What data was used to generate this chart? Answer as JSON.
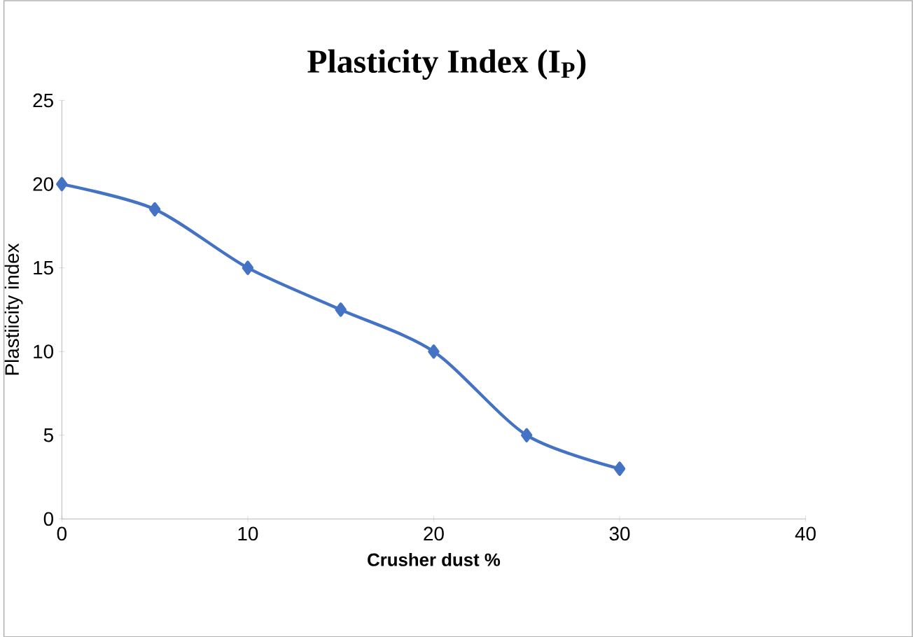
{
  "chart_data": {
    "type": "line",
    "title": "Plasticity Index (I$_{P}$)",
    "xlabel": "Crusher dust %",
    "ylabel": "Plastiicity index",
    "x": [
      0,
      5,
      10,
      15,
      20,
      25,
      30
    ],
    "series": [
      {
        "color": "#4472c4",
        "values": [
          20,
          18.5,
          15,
          12.5,
          10,
          5,
          3
        ]
      }
    ],
    "xlim": [
      0,
      40
    ],
    "xticks": [
      0,
      10,
      20,
      30,
      40
    ],
    "ylim": [
      0,
      25
    ],
    "yticks": [
      0,
      5,
      10,
      15,
      20,
      25
    ],
    "marker": "diamond",
    "line_style": "solid",
    "grid": false
  }
}
